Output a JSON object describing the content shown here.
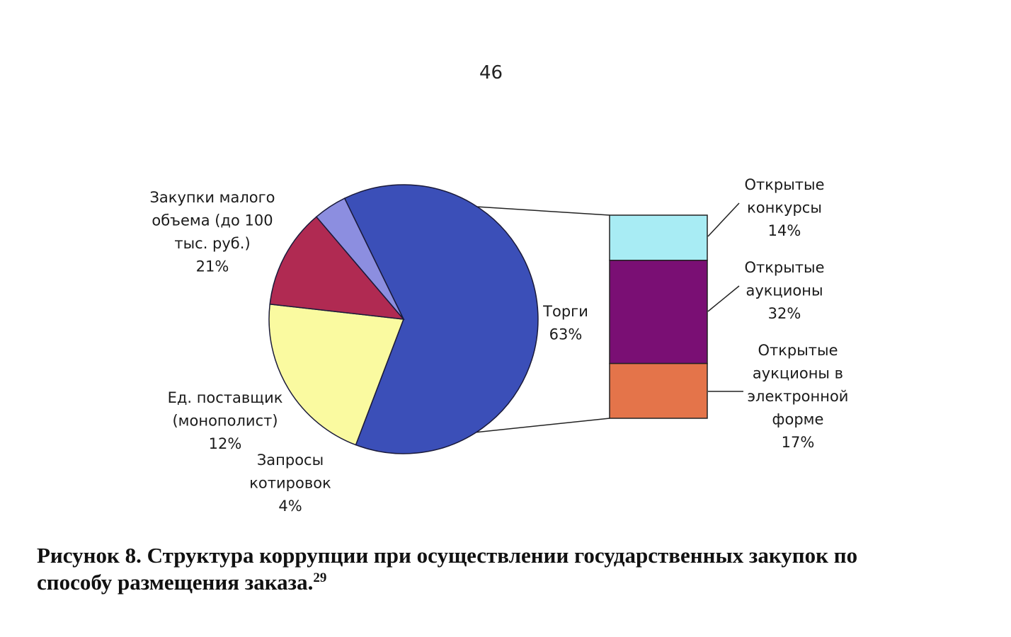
{
  "page": {
    "number": "46"
  },
  "caption": {
    "line1": "Рисунок 8. Структура коррупции при осуществлении государственных закупок по",
    "line2": "способу размещения заказа.",
    "footnote": "29"
  },
  "chart_data": {
    "type": "pie",
    "title": "",
    "pie": {
      "slices": [
        {
          "label_lines": [
            "Торги",
            "63%"
          ],
          "value": 63,
          "color": "#3b4fb8"
        },
        {
          "label_lines": [
            "Закупки малого",
            "объема (до 100",
            "тыс. руб.)",
            "21%"
          ],
          "value": 21,
          "color": "#fafaa0"
        },
        {
          "label_lines": [
            "Ед. поставщик",
            "(монополист)",
            "12%"
          ],
          "value": 12,
          "color": "#b02a52"
        },
        {
          "label_lines": [
            "Запросы",
            "котировок",
            "4%"
          ],
          "value": 4,
          "color": "#8c8ee0"
        }
      ]
    },
    "breakdown_of": "Торги",
    "bar": {
      "segments": [
        {
          "label_lines": [
            "Открытые",
            "конкурсы",
            "14%"
          ],
          "value": 14,
          "color": "#a8ecf4"
        },
        {
          "label_lines": [
            "Открытые",
            "аукционы",
            "32%"
          ],
          "value": 32,
          "color": "#7a0f74"
        },
        {
          "label_lines": [
            "Открытые",
            "аукционы в",
            "электронной",
            "форме",
            "17%"
          ],
          "value": 17,
          "color": "#e4744a"
        }
      ]
    }
  }
}
